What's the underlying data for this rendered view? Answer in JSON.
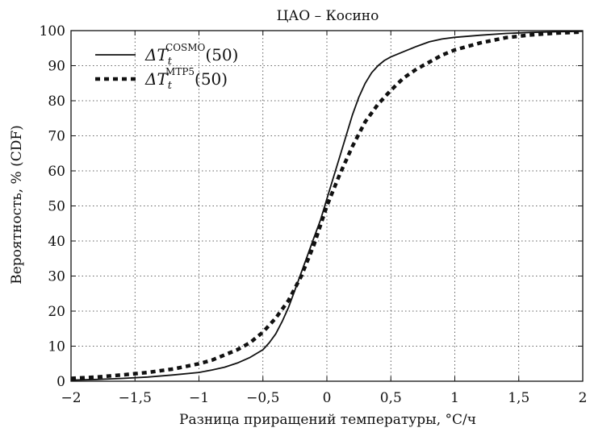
{
  "chart_data": {
    "type": "line",
    "title": "ЦАО – Косино",
    "xlabel": "Разница приращений температуры, °С/ч",
    "ylabel": "Вероятность, % (CDF)",
    "xlim": [
      -2,
      2
    ],
    "ylim": [
      0,
      100
    ],
    "grid": true,
    "legend_position": "top-left",
    "x_ticks": [
      -2,
      -1.5,
      -1,
      -0.5,
      0,
      0.5,
      1,
      1.5,
      2
    ],
    "x_tick_labels": [
      "−2",
      "−1,5",
      "−1",
      "−0,5",
      "0",
      "0,5",
      "1",
      "1,5",
      "2"
    ],
    "y_ticks": [
      0,
      10,
      20,
      30,
      40,
      50,
      60,
      70,
      80,
      90,
      100
    ],
    "y_tick_labels": [
      "0",
      "10",
      "20",
      "30",
      "40",
      "50",
      "60",
      "70",
      "80",
      "90",
      "100"
    ],
    "series": [
      {
        "name": "ΔT_t^COSMO(50)",
        "legend": {
          "base": "ΔT",
          "sub": "t",
          "sup": "COSMO",
          "suffix": "(50)"
        },
        "style": "solid",
        "color": "#111111",
        "x": [
          -2,
          -1.8,
          -1.6,
          -1.4,
          -1.2,
          -1.0,
          -0.9,
          -0.8,
          -0.7,
          -0.6,
          -0.5,
          -0.45,
          -0.4,
          -0.35,
          -0.3,
          -0.25,
          -0.2,
          -0.15,
          -0.1,
          -0.05,
          0,
          0.05,
          0.1,
          0.15,
          0.2,
          0.25,
          0.3,
          0.35,
          0.4,
          0.45,
          0.5,
          0.6,
          0.7,
          0.8,
          0.9,
          1.0,
          1.2,
          1.4,
          1.6,
          1.8,
          2.0
        ],
        "y": [
          0.3,
          0.5,
          0.8,
          1.2,
          1.8,
          2.5,
          3.2,
          4.0,
          5.2,
          6.8,
          9.0,
          11.0,
          13.5,
          17.0,
          21.0,
          26.0,
          31.0,
          36.0,
          41.0,
          46.0,
          52.0,
          58.0,
          64.0,
          70.0,
          76.0,
          81.0,
          85.0,
          88.0,
          90.0,
          91.5,
          92.5,
          94.0,
          95.5,
          96.8,
          97.6,
          98.1,
          98.7,
          99.2,
          99.5,
          99.7,
          99.8
        ]
      },
      {
        "name": "ΔT_t^MTP5(50)",
        "legend": {
          "base": "ΔT",
          "sub": "t",
          "sup": "MTP5",
          "suffix": "(50)"
        },
        "style": "dotted",
        "color": "#111111",
        "x": [
          -2,
          -1.8,
          -1.6,
          -1.4,
          -1.2,
          -1.0,
          -0.9,
          -0.8,
          -0.7,
          -0.6,
          -0.5,
          -0.4,
          -0.3,
          -0.2,
          -0.1,
          0,
          0.1,
          0.2,
          0.3,
          0.4,
          0.5,
          0.6,
          0.7,
          0.8,
          0.9,
          1.0,
          1.2,
          1.4,
          1.6,
          1.8,
          2.0
        ],
        "y": [
          0.8,
          1.2,
          1.8,
          2.5,
          3.5,
          5.0,
          6.0,
          7.5,
          9.0,
          11.0,
          14.0,
          18.0,
          23.0,
          30.0,
          39.0,
          50.0,
          59.0,
          67.0,
          74.0,
          79.0,
          83.0,
          86.5,
          89.0,
          91.0,
          93.0,
          94.5,
          96.5,
          98.0,
          98.8,
          99.3,
          99.6
        ]
      }
    ]
  }
}
